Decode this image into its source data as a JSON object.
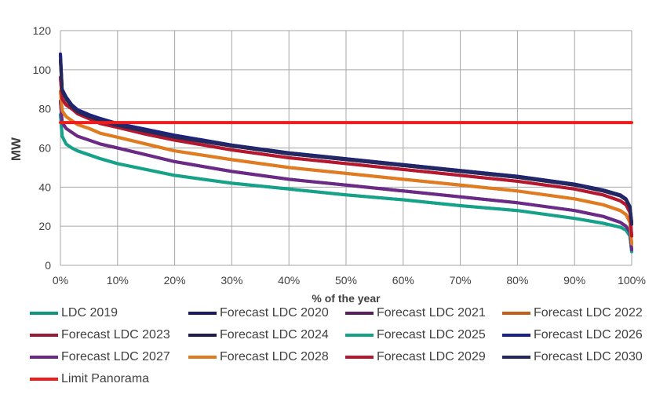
{
  "chart_data": {
    "type": "line",
    "xlabel": "% of the year",
    "ylabel": "MW",
    "xlim": [
      0,
      100
    ],
    "ylim": [
      0,
      120
    ],
    "x_ticks": [
      "0%",
      "10%",
      "20%",
      "30%",
      "40%",
      "50%",
      "60%",
      "70%",
      "80%",
      "90%",
      "100%"
    ],
    "y_ticks": [
      "0",
      "20",
      "40",
      "60",
      "80",
      "100",
      "120"
    ],
    "grid": true,
    "legend_position": "bottom",
    "x": [
      0,
      0.3,
      1,
      2,
      3,
      5,
      7,
      10,
      15,
      20,
      30,
      40,
      50,
      60,
      70,
      80,
      90,
      95,
      98,
      99,
      99.7,
      100
    ],
    "series": [
      {
        "name": "LDC 2019",
        "color": "#12957a",
        "values": [
          77,
          66,
          62,
          60,
          58.5,
          56.5,
          54.5,
          52,
          49,
          46,
          42,
          39,
          36,
          33.5,
          30.5,
          28,
          24,
          21.5,
          19.5,
          18,
          15,
          7
        ]
      },
      {
        "name": "Forecast LDC 2020",
        "color": "#1b1a5e",
        "values": [
          108,
          90,
          86,
          82,
          79.5,
          77,
          75,
          72.5,
          69.5,
          66.5,
          61.5,
          57.5,
          54.5,
          51.5,
          48.5,
          45.5,
          41.5,
          38.5,
          36,
          34,
          30,
          22
        ]
      },
      {
        "name": "Forecast LDC 2021",
        "color": "#5a1e5e",
        "values": [
          84,
          73,
          70,
          68,
          66,
          64,
          62,
          60,
          56.5,
          53,
          48,
          44,
          41,
          38,
          35,
          32,
          28,
          25,
          22,
          20,
          17,
          8
        ]
      },
      {
        "name": "Forecast LDC 2022",
        "color": "#c15f1a",
        "values": [
          89,
          79,
          76,
          74,
          72,
          70,
          67.5,
          65.5,
          62,
          58.5,
          54,
          50,
          47,
          44,
          41,
          38,
          34,
          31,
          28,
          26,
          22,
          11
        ]
      },
      {
        "name": "Forecast LDC 2023",
        "color": "#9b1c3a",
        "values": [
          96,
          85,
          82,
          80,
          77.5,
          75,
          72.5,
          70.5,
          67,
          64,
          59,
          55,
          52,
          49,
          46,
          43,
          39,
          36,
          33,
          31,
          27,
          15
        ]
      },
      {
        "name": "Forecast LDC 2024",
        "color": "#1f1e4b",
        "values": [
          105,
          89,
          85,
          81,
          78.5,
          76,
          74,
          71.5,
          68.5,
          65.5,
          61,
          57,
          54,
          51,
          48,
          45,
          41,
          38,
          35.5,
          33.5,
          29.5,
          21
        ]
      },
      {
        "name": "Forecast LDC 2025",
        "color": "#16a189",
        "values": [
          77,
          66,
          62,
          60,
          58.5,
          56.5,
          54.5,
          52,
          49,
          46,
          42,
          39,
          36,
          33.5,
          30.5,
          28,
          24,
          21.5,
          19.5,
          18,
          15,
          7
        ]
      },
      {
        "name": "Forecast LDC 2026",
        "color": "#1b2283",
        "values": [
          108,
          90,
          86,
          82,
          79.5,
          77,
          75,
          72.5,
          69.5,
          66.5,
          61.5,
          57.5,
          54.5,
          51.5,
          48.5,
          45.5,
          41.5,
          38.5,
          36,
          34,
          30,
          22
        ]
      },
      {
        "name": "Forecast LDC 2027",
        "color": "#6a2a85",
        "values": [
          84,
          73,
          70,
          68,
          66,
          64,
          62,
          60,
          56.5,
          53,
          48,
          44,
          41,
          38,
          35,
          32,
          28,
          25,
          22,
          20,
          17,
          8
        ]
      },
      {
        "name": "Forecast LDC 2028",
        "color": "#e07b20",
        "values": [
          89,
          79,
          76,
          74,
          72,
          70,
          67.5,
          65.5,
          62,
          58.5,
          54,
          50,
          47,
          44,
          41,
          38,
          34,
          31,
          28,
          26,
          22,
          11
        ]
      },
      {
        "name": "Forecast LDC 2029",
        "color": "#b5182e",
        "values": [
          96,
          85,
          82,
          80,
          77.5,
          75,
          72.5,
          70.5,
          67,
          64,
          59,
          55,
          52,
          49,
          46,
          43,
          39,
          36,
          33,
          31,
          27,
          15
        ]
      },
      {
        "name": "Forecast LDC 2030",
        "color": "#25285c",
        "values": [
          105,
          89,
          85,
          81,
          78.5,
          76,
          74,
          71.5,
          68.5,
          65.5,
          61,
          57,
          54,
          51,
          48,
          45,
          41,
          38,
          35.5,
          33.5,
          29.5,
          21
        ]
      },
      {
        "name": "Limit Panorama",
        "color": "#ee1c1c",
        "values": [
          73,
          73,
          73,
          73,
          73,
          73,
          73,
          73,
          73,
          73,
          73,
          73,
          73,
          73,
          73,
          73,
          73,
          73,
          73,
          73,
          73,
          73
        ]
      }
    ]
  }
}
